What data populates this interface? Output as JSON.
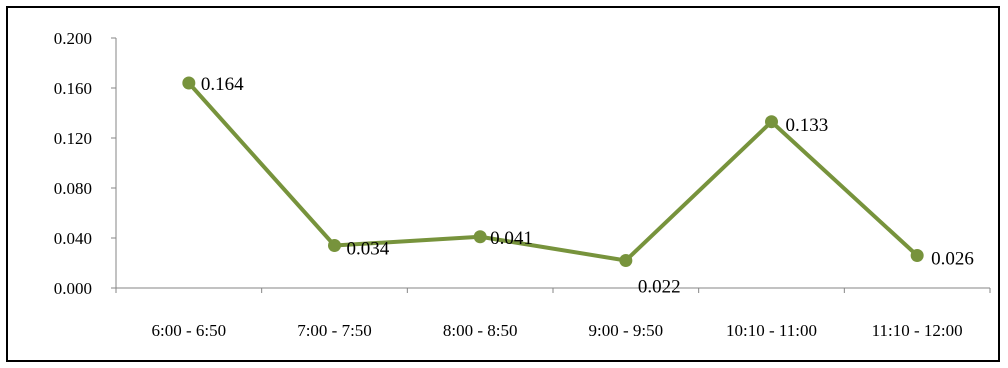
{
  "chart_data": {
    "type": "line",
    "categories": [
      "6:00 - 6:50",
      "7:00 - 7:50",
      "8:00 - 8:50",
      "9:00 - 9:50",
      "10:10 - 11:00",
      "11:10 - 12:00"
    ],
    "series": [
      {
        "values": [
          0.164,
          0.034,
          0.041,
          0.022,
          0.133,
          0.026
        ],
        "color": "#77933c"
      }
    ],
    "data_labels": [
      "0.164",
      "0.034",
      "0.041",
      "0.022",
      "0.133",
      "0.026"
    ],
    "y_ticks": [
      "0.000",
      "0.040",
      "0.080",
      "0.120",
      "0.160",
      "0.200"
    ],
    "ylim": [
      0,
      0.2
    ],
    "title": "",
    "xlabel": "",
    "ylabel": "",
    "grid": false,
    "legend": "none"
  }
}
